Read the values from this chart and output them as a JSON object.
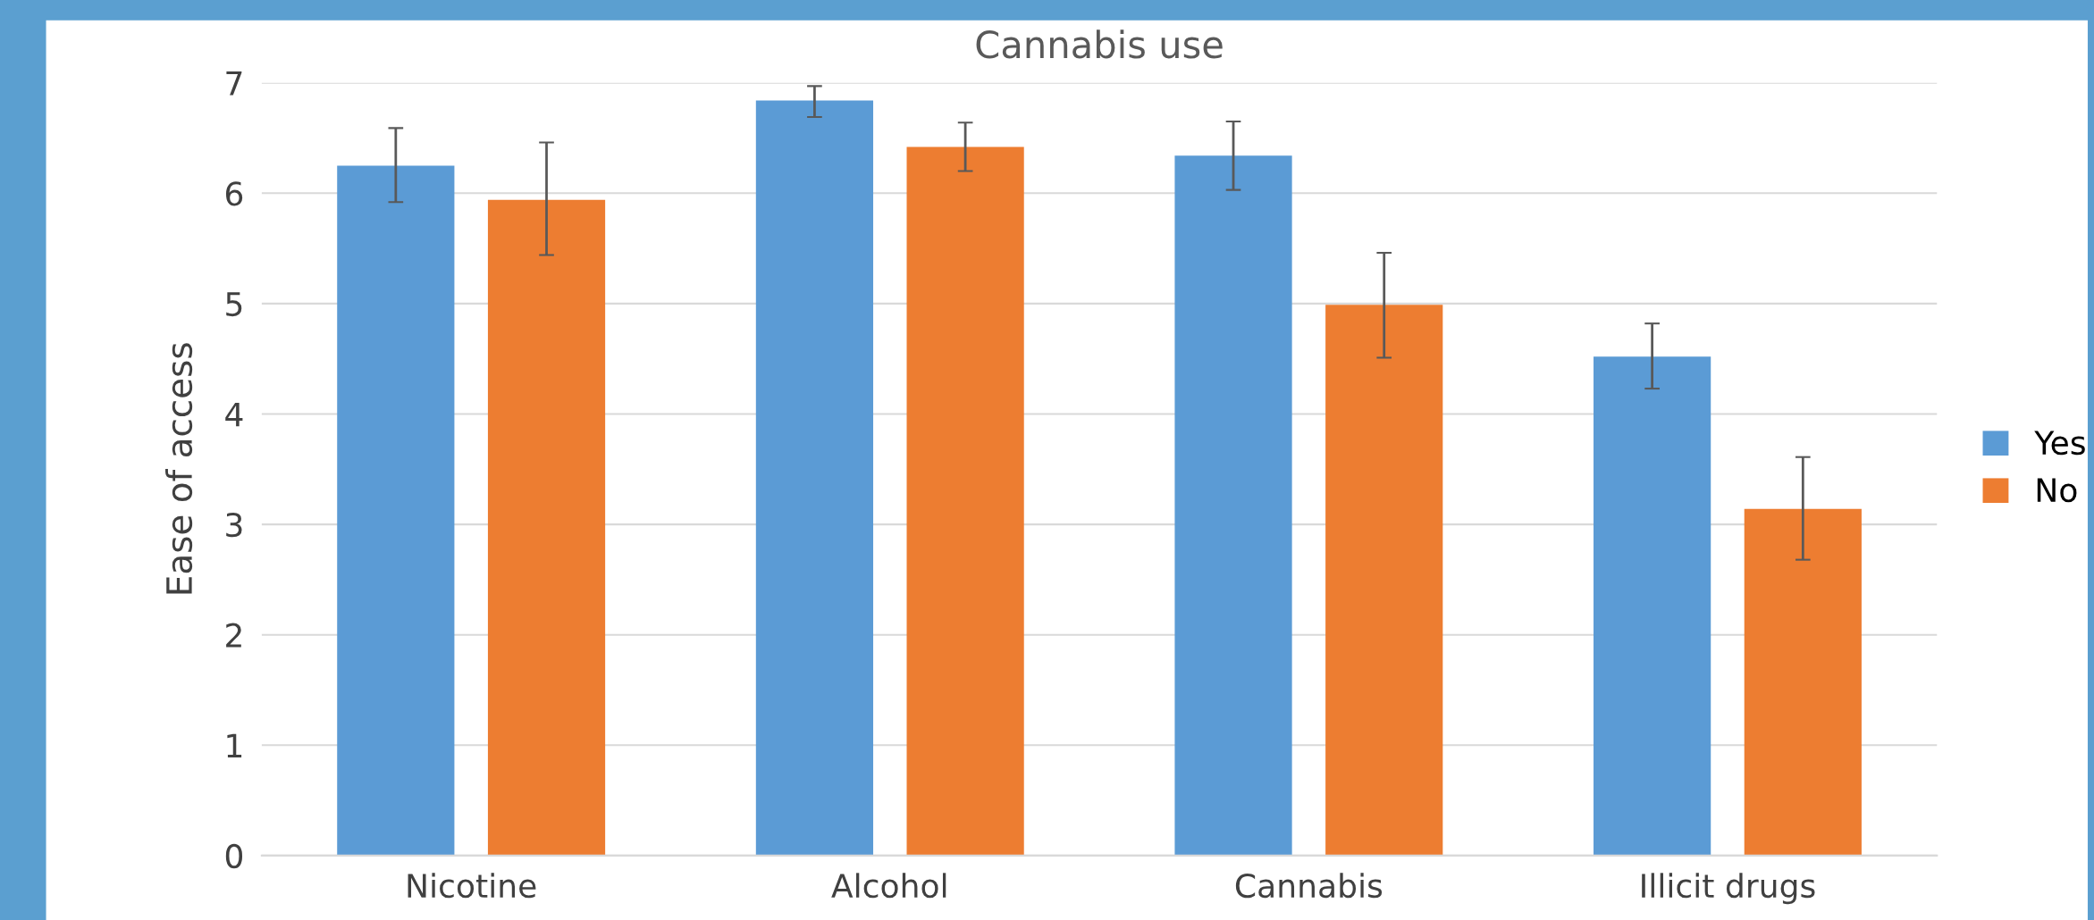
{
  "chart_data": {
    "type": "bar",
    "title": "Cannabis use",
    "ylabel": "Ease of access",
    "categories": [
      "Nicotine",
      "Alcohol",
      "Cannabis",
      "Illicit drugs"
    ],
    "series": [
      {
        "name": "Yes",
        "color": "#5b9bd5",
        "values": [
          6.25,
          6.84,
          6.34,
          4.52
        ],
        "errors": [
          [
            5.92,
            6.59
          ],
          [
            6.69,
            6.97
          ],
          [
            6.03,
            6.65
          ],
          [
            4.23,
            4.82
          ]
        ]
      },
      {
        "name": "No",
        "color": "#ed7d31",
        "values": [
          5.94,
          6.42,
          4.99,
          3.14
        ],
        "errors": [
          [
            5.44,
            6.46
          ],
          [
            6.2,
            6.64
          ],
          [
            4.51,
            5.46
          ],
          [
            2.68,
            3.61
          ]
        ]
      }
    ],
    "ylim": [
      0,
      7
    ],
    "yticks": [
      0,
      1,
      2,
      3,
      4,
      5,
      6,
      7
    ],
    "grid": "y",
    "legend": "right"
  }
}
